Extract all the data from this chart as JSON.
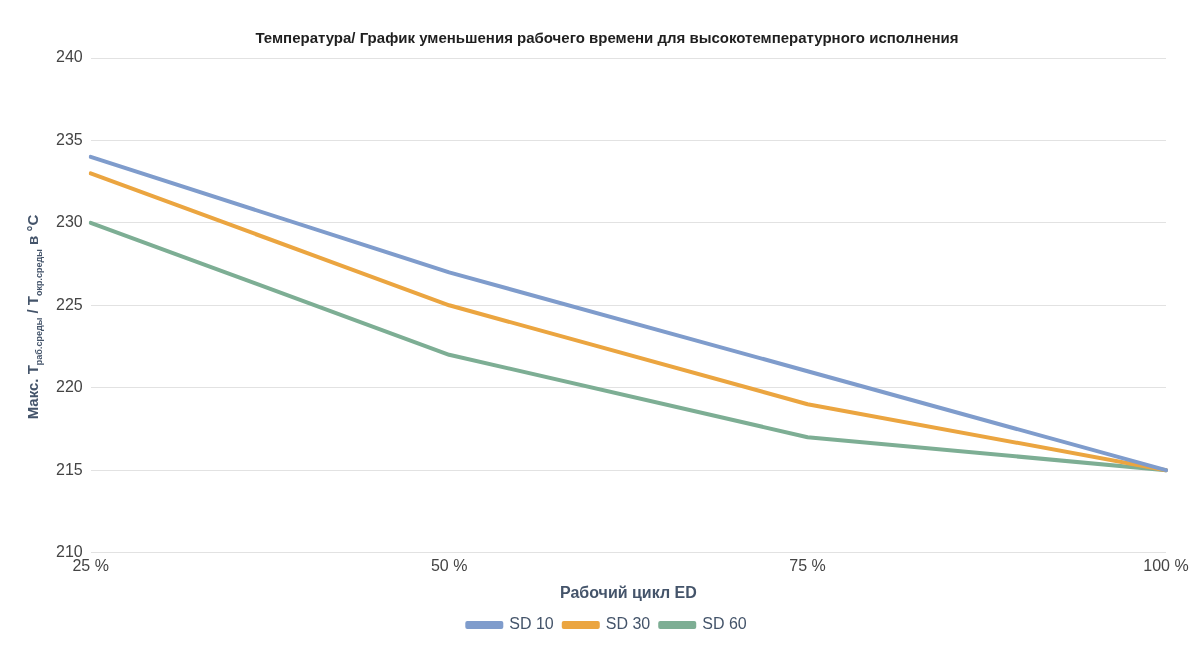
{
  "chart_data": {
    "type": "line",
    "title": "Температура/ График уменьшения рабочего времени для высокотемпературного исполнения",
    "xlabel": "Рабочий цикл ED",
    "ylabel": "Макс. T$_{раб.среды}$ / T$_{окр.среды}$ в °C",
    "categories": [
      "25 %",
      "50 %",
      "75 %",
      "100 %"
    ],
    "series": [
      {
        "name": "SD 10",
        "color": "#7f9ccc",
        "values": [
          234,
          227,
          221,
          215
        ]
      },
      {
        "name": "SD 30",
        "color": "#eba540",
        "values": [
          233,
          225,
          219,
          215
        ]
      },
      {
        "name": "SD 60",
        "color": "#7dae94",
        "values": [
          230,
          222,
          217,
          215
        ]
      }
    ],
    "ylim": [
      210,
      240
    ],
    "yticks": [
      210,
      215,
      220,
      225,
      230,
      235,
      240
    ],
    "grid": "y",
    "legend": "bottom",
    "marker": "none",
    "line_style": "solid"
  }
}
